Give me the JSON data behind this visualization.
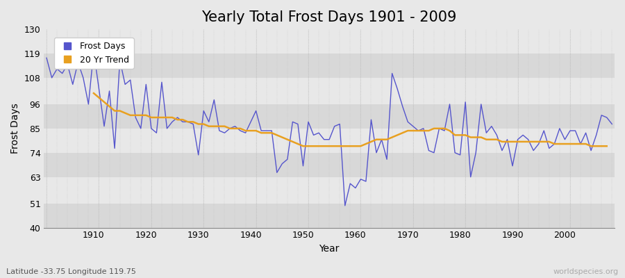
{
  "title": "Yearly Total Frost Days 1901 - 2009",
  "xlabel": "Year",
  "ylabel": "Frost Days",
  "subtitle": "Latitude -33.75 Longitude 119.75",
  "watermark": "worldspecies.org",
  "years": [
    1901,
    1902,
    1903,
    1904,
    1905,
    1906,
    1907,
    1908,
    1909,
    1910,
    1911,
    1912,
    1913,
    1914,
    1915,
    1916,
    1917,
    1918,
    1919,
    1920,
    1921,
    1922,
    1923,
    1924,
    1925,
    1926,
    1927,
    1928,
    1929,
    1930,
    1931,
    1932,
    1933,
    1934,
    1935,
    1936,
    1937,
    1938,
    1939,
    1940,
    1941,
    1942,
    1943,
    1944,
    1945,
    1946,
    1947,
    1948,
    1949,
    1950,
    1951,
    1952,
    1953,
    1954,
    1955,
    1956,
    1957,
    1958,
    1959,
    1960,
    1961,
    1962,
    1963,
    1964,
    1965,
    1966,
    1967,
    1968,
    1969,
    1970,
    1971,
    1972,
    1973,
    1974,
    1975,
    1976,
    1977,
    1978,
    1979,
    1980,
    1981,
    1982,
    1983,
    1984,
    1985,
    1986,
    1987,
    1988,
    1989,
    1990,
    1991,
    1992,
    1993,
    1994,
    1995,
    1996,
    1997,
    1998,
    1999,
    2000,
    2001,
    2002,
    2003,
    2004,
    2005,
    2006,
    2007,
    2008,
    2009
  ],
  "frost_days": [
    117,
    108,
    112,
    110,
    114,
    105,
    115,
    108,
    96,
    120,
    103,
    86,
    102,
    76,
    116,
    105,
    107,
    90,
    85,
    105,
    85,
    83,
    106,
    85,
    88,
    90,
    88,
    88,
    87,
    73,
    93,
    88,
    98,
    84,
    83,
    85,
    86,
    84,
    83,
    88,
    93,
    84,
    84,
    84,
    65,
    69,
    71,
    88,
    87,
    68,
    88,
    82,
    83,
    80,
    80,
    86,
    87,
    50,
    60,
    58,
    62,
    61,
    89,
    74,
    80,
    71,
    110,
    103,
    95,
    88,
    86,
    84,
    85,
    75,
    74,
    85,
    84,
    96,
    74,
    73,
    97,
    63,
    74,
    96,
    83,
    86,
    82,
    75,
    80,
    68,
    80,
    82,
    80,
    75,
    78,
    84,
    76,
    78,
    85,
    80,
    84,
    84,
    78,
    83,
    75,
    82,
    91,
    90,
    87
  ],
  "trend_values": [
    null,
    null,
    null,
    null,
    null,
    null,
    null,
    null,
    null,
    101,
    99,
    97,
    95,
    93,
    93,
    92,
    91,
    91,
    91,
    91,
    90,
    90,
    90,
    90,
    90,
    89,
    89,
    88,
    88,
    87,
    87,
    86,
    86,
    86,
    86,
    85,
    85,
    85,
    84,
    84,
    84,
    83,
    83,
    83,
    82,
    81,
    80,
    79,
    78,
    77,
    77,
    77,
    77,
    77,
    77,
    77,
    77,
    77,
    77,
    77,
    77,
    78,
    79,
    80,
    80,
    80,
    81,
    82,
    83,
    84,
    84,
    84,
    84,
    84,
    85,
    85,
    85,
    84,
    82,
    82,
    82,
    81,
    81,
    81,
    80,
    80,
    80,
    79,
    79,
    79,
    79,
    79,
    79,
    79,
    79,
    79,
    79,
    78,
    78,
    78,
    78,
    78,
    78,
    78,
    77,
    77,
    77,
    77,
    null
  ],
  "line_color": "#5555cc",
  "trend_color": "#e8a020",
  "plot_bg_color": "#e8e8e8",
  "fig_bg_color": "#e8e8e8",
  "band_colors": [
    "#d8d8d8",
    "#e8e8e8"
  ],
  "ylim": [
    40,
    130
  ],
  "yticks": [
    40,
    51,
    63,
    74,
    85,
    96,
    108,
    119,
    130
  ],
  "xlim_min": 1901,
  "xlim_max": 2009,
  "grid_color": "#cccccc",
  "vgrid_color": "#bbbbbb",
  "title_fontsize": 15,
  "axis_fontsize": 10,
  "tick_fontsize": 9,
  "legend_fontsize": 9
}
